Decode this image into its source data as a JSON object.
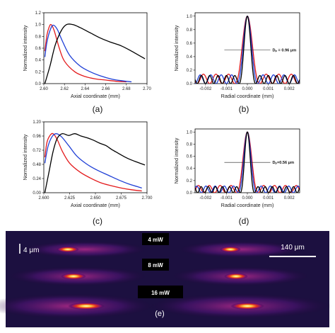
{
  "chart_data": [
    {
      "panel": "(a)",
      "type": "line",
      "xlabel": "Axial coordinate (mm)",
      "ylabel": "Normalized intensity",
      "xlim": [
        2.6,
        2.7
      ],
      "ylim": [
        0.0,
        1.2
      ],
      "xticks": [
        "2.60",
        "2.62",
        "2.64",
        "2.66",
        "2.68",
        "2.70"
      ],
      "yticks": [
        "0.0",
        "0.2",
        "0.4",
        "0.6",
        "0.8",
        "1.0",
        "1.2"
      ],
      "series": [
        {
          "color": "#e31a1c",
          "points": [
            [
              2.601,
              0.55
            ],
            [
              2.603,
              0.82
            ],
            [
              2.605,
              0.95
            ],
            [
              2.607,
              1.0
            ],
            [
              2.61,
              0.9
            ],
            [
              2.615,
              0.6
            ],
            [
              2.62,
              0.38
            ],
            [
              2.63,
              0.2
            ],
            [
              2.64,
              0.12
            ],
            [
              2.65,
              0.08
            ],
            [
              2.66,
              0.06
            ],
            [
              2.67,
              0.04
            ],
            [
              2.68,
              0.03
            ]
          ]
        },
        {
          "color": "#1f3fd6",
          "points": [
            [
              2.601,
              0.45
            ],
            [
              2.603,
              0.7
            ],
            [
              2.606,
              0.9
            ],
            [
              2.609,
              0.99
            ],
            [
              2.613,
              0.92
            ],
            [
              2.618,
              0.72
            ],
            [
              2.625,
              0.48
            ],
            [
              2.635,
              0.3
            ],
            [
              2.645,
              0.2
            ],
            [
              2.655,
              0.13
            ],
            [
              2.665,
              0.08
            ],
            [
              2.675,
              0.05
            ],
            [
              2.685,
              0.03
            ]
          ]
        },
        {
          "color": "#000000",
          "points": [
            [
              2.601,
              0.0
            ],
            [
              2.606,
              0.3
            ],
            [
              2.611,
              0.65
            ],
            [
              2.617,
              0.9
            ],
            [
              2.622,
              1.0
            ],
            [
              2.628,
              1.0
            ],
            [
              2.635,
              0.95
            ],
            [
              2.645,
              0.86
            ],
            [
              2.655,
              0.77
            ],
            [
              2.665,
              0.7
            ],
            [
              2.675,
              0.64
            ],
            [
              2.685,
              0.55
            ],
            [
              2.698,
              0.42
            ]
          ]
        }
      ]
    },
    {
      "panel": "(b)",
      "type": "line",
      "xlabel": "Radial coordinate (mm)",
      "ylabel": "Normalized intensity",
      "xlim": [
        -0.0025,
        0.0025
      ],
      "ylim": [
        0.0,
        1.05
      ],
      "xticks": [
        "-0.002",
        "-0.001",
        "0.000",
        "0.001",
        "0.002"
      ],
      "yticks": [
        "0.0",
        "0.2",
        "0.4",
        "0.6",
        "0.8",
        "1.0"
      ],
      "annotation": "Dₚ = 0.96 μm",
      "annotation_y": 0.5,
      "series": [
        {
          "color": "#e31a1c",
          "width_mm": 0.0006,
          "side": 0.14
        },
        {
          "color": "#1f3fd6",
          "width_mm": 0.0005,
          "side": 0.13
        },
        {
          "color": "#000000",
          "width_mm": 0.0004,
          "side": 0.12
        }
      ]
    },
    {
      "panel": "(c)",
      "type": "line",
      "xlabel": "Axial coordinate (mm)",
      "ylabel": "Normalized intensity",
      "xlim": [
        2.6,
        2.7
      ],
      "ylim": [
        0.0,
        1.2
      ],
      "xticks": [
        "2.600",
        "2.625",
        "2.650",
        "2.675",
        "2.700"
      ],
      "yticks": [
        "0.00",
        "0.24",
        "0.48",
        "0.72",
        "0.96",
        "1.20"
      ],
      "series": [
        {
          "color": "#e31a1c",
          "points": [
            [
              2.601,
              0.6
            ],
            [
              2.603,
              0.85
            ],
            [
              2.606,
              0.97
            ],
            [
              2.609,
              1.0
            ],
            [
              2.613,
              0.9
            ],
            [
              2.618,
              0.7
            ],
            [
              2.625,
              0.5
            ],
            [
              2.635,
              0.35
            ],
            [
              2.645,
              0.25
            ],
            [
              2.655,
              0.17
            ],
            [
              2.665,
              0.12
            ],
            [
              2.675,
              0.08
            ],
            [
              2.685,
              0.05
            ],
            [
              2.695,
              0.03
            ]
          ]
        },
        {
          "color": "#1f3fd6",
          "points": [
            [
              2.601,
              0.5
            ],
            [
              2.604,
              0.78
            ],
            [
              2.608,
              0.95
            ],
            [
              2.612,
              1.0
            ],
            [
              2.617,
              0.95
            ],
            [
              2.624,
              0.8
            ],
            [
              2.632,
              0.62
            ],
            [
              2.642,
              0.48
            ],
            [
              2.652,
              0.38
            ],
            [
              2.662,
              0.3
            ],
            [
              2.672,
              0.22
            ],
            [
              2.682,
              0.15
            ],
            [
              2.695,
              0.08
            ]
          ]
        },
        {
          "color": "#000000",
          "points": [
            [
              2.601,
              0.0
            ],
            [
              2.605,
              0.35
            ],
            [
              2.609,
              0.7
            ],
            [
              2.613,
              0.92
            ],
            [
              2.618,
              1.0
            ],
            [
              2.624,
              0.97
            ],
            [
              2.63,
              1.0
            ],
            [
              2.636,
              0.96
            ],
            [
              2.642,
              0.93
            ],
            [
              2.648,
              0.89
            ],
            [
              2.654,
              0.84
            ],
            [
              2.66,
              0.8
            ],
            [
              2.666,
              0.73
            ],
            [
              2.672,
              0.67
            ],
            [
              2.678,
              0.61
            ],
            [
              2.684,
              0.56
            ],
            [
              2.69,
              0.52
            ],
            [
              2.698,
              0.47
            ]
          ]
        }
      ]
    },
    {
      "panel": "(d)",
      "type": "line",
      "xlabel": "Radial coordinate (mm)",
      "ylabel": "Normalized intensity",
      "xlim": [
        -0.0025,
        0.0025
      ],
      "ylim": [
        0.0,
        1.05
      ],
      "xticks": [
        "-0.002",
        "-0.001",
        "0.000",
        "0.001",
        "0.002"
      ],
      "yticks": [
        "0.0",
        "0.2",
        "0.4",
        "0.6",
        "0.8",
        "1.0"
      ],
      "annotation": "Dₚ=0.56 μm",
      "annotation_y": 0.5,
      "series": [
        {
          "color": "#e31a1c",
          "width_mm": 0.00052,
          "side": 0.12
        },
        {
          "color": "#1f3fd6",
          "width_mm": 0.00044,
          "side": 0.11
        },
        {
          "color": "#000000",
          "width_mm": 0.00034,
          "side": 0.1
        }
      ]
    }
  ],
  "panel_labels": [
    "(a)",
    "(b)",
    "(c)",
    "(d)",
    "(e)"
  ],
  "image_panel": {
    "powers": [
      "4 mW",
      "8 mW",
      "16 mW"
    ],
    "scale_left": "4 μm",
    "scale_right": "140 μm"
  }
}
